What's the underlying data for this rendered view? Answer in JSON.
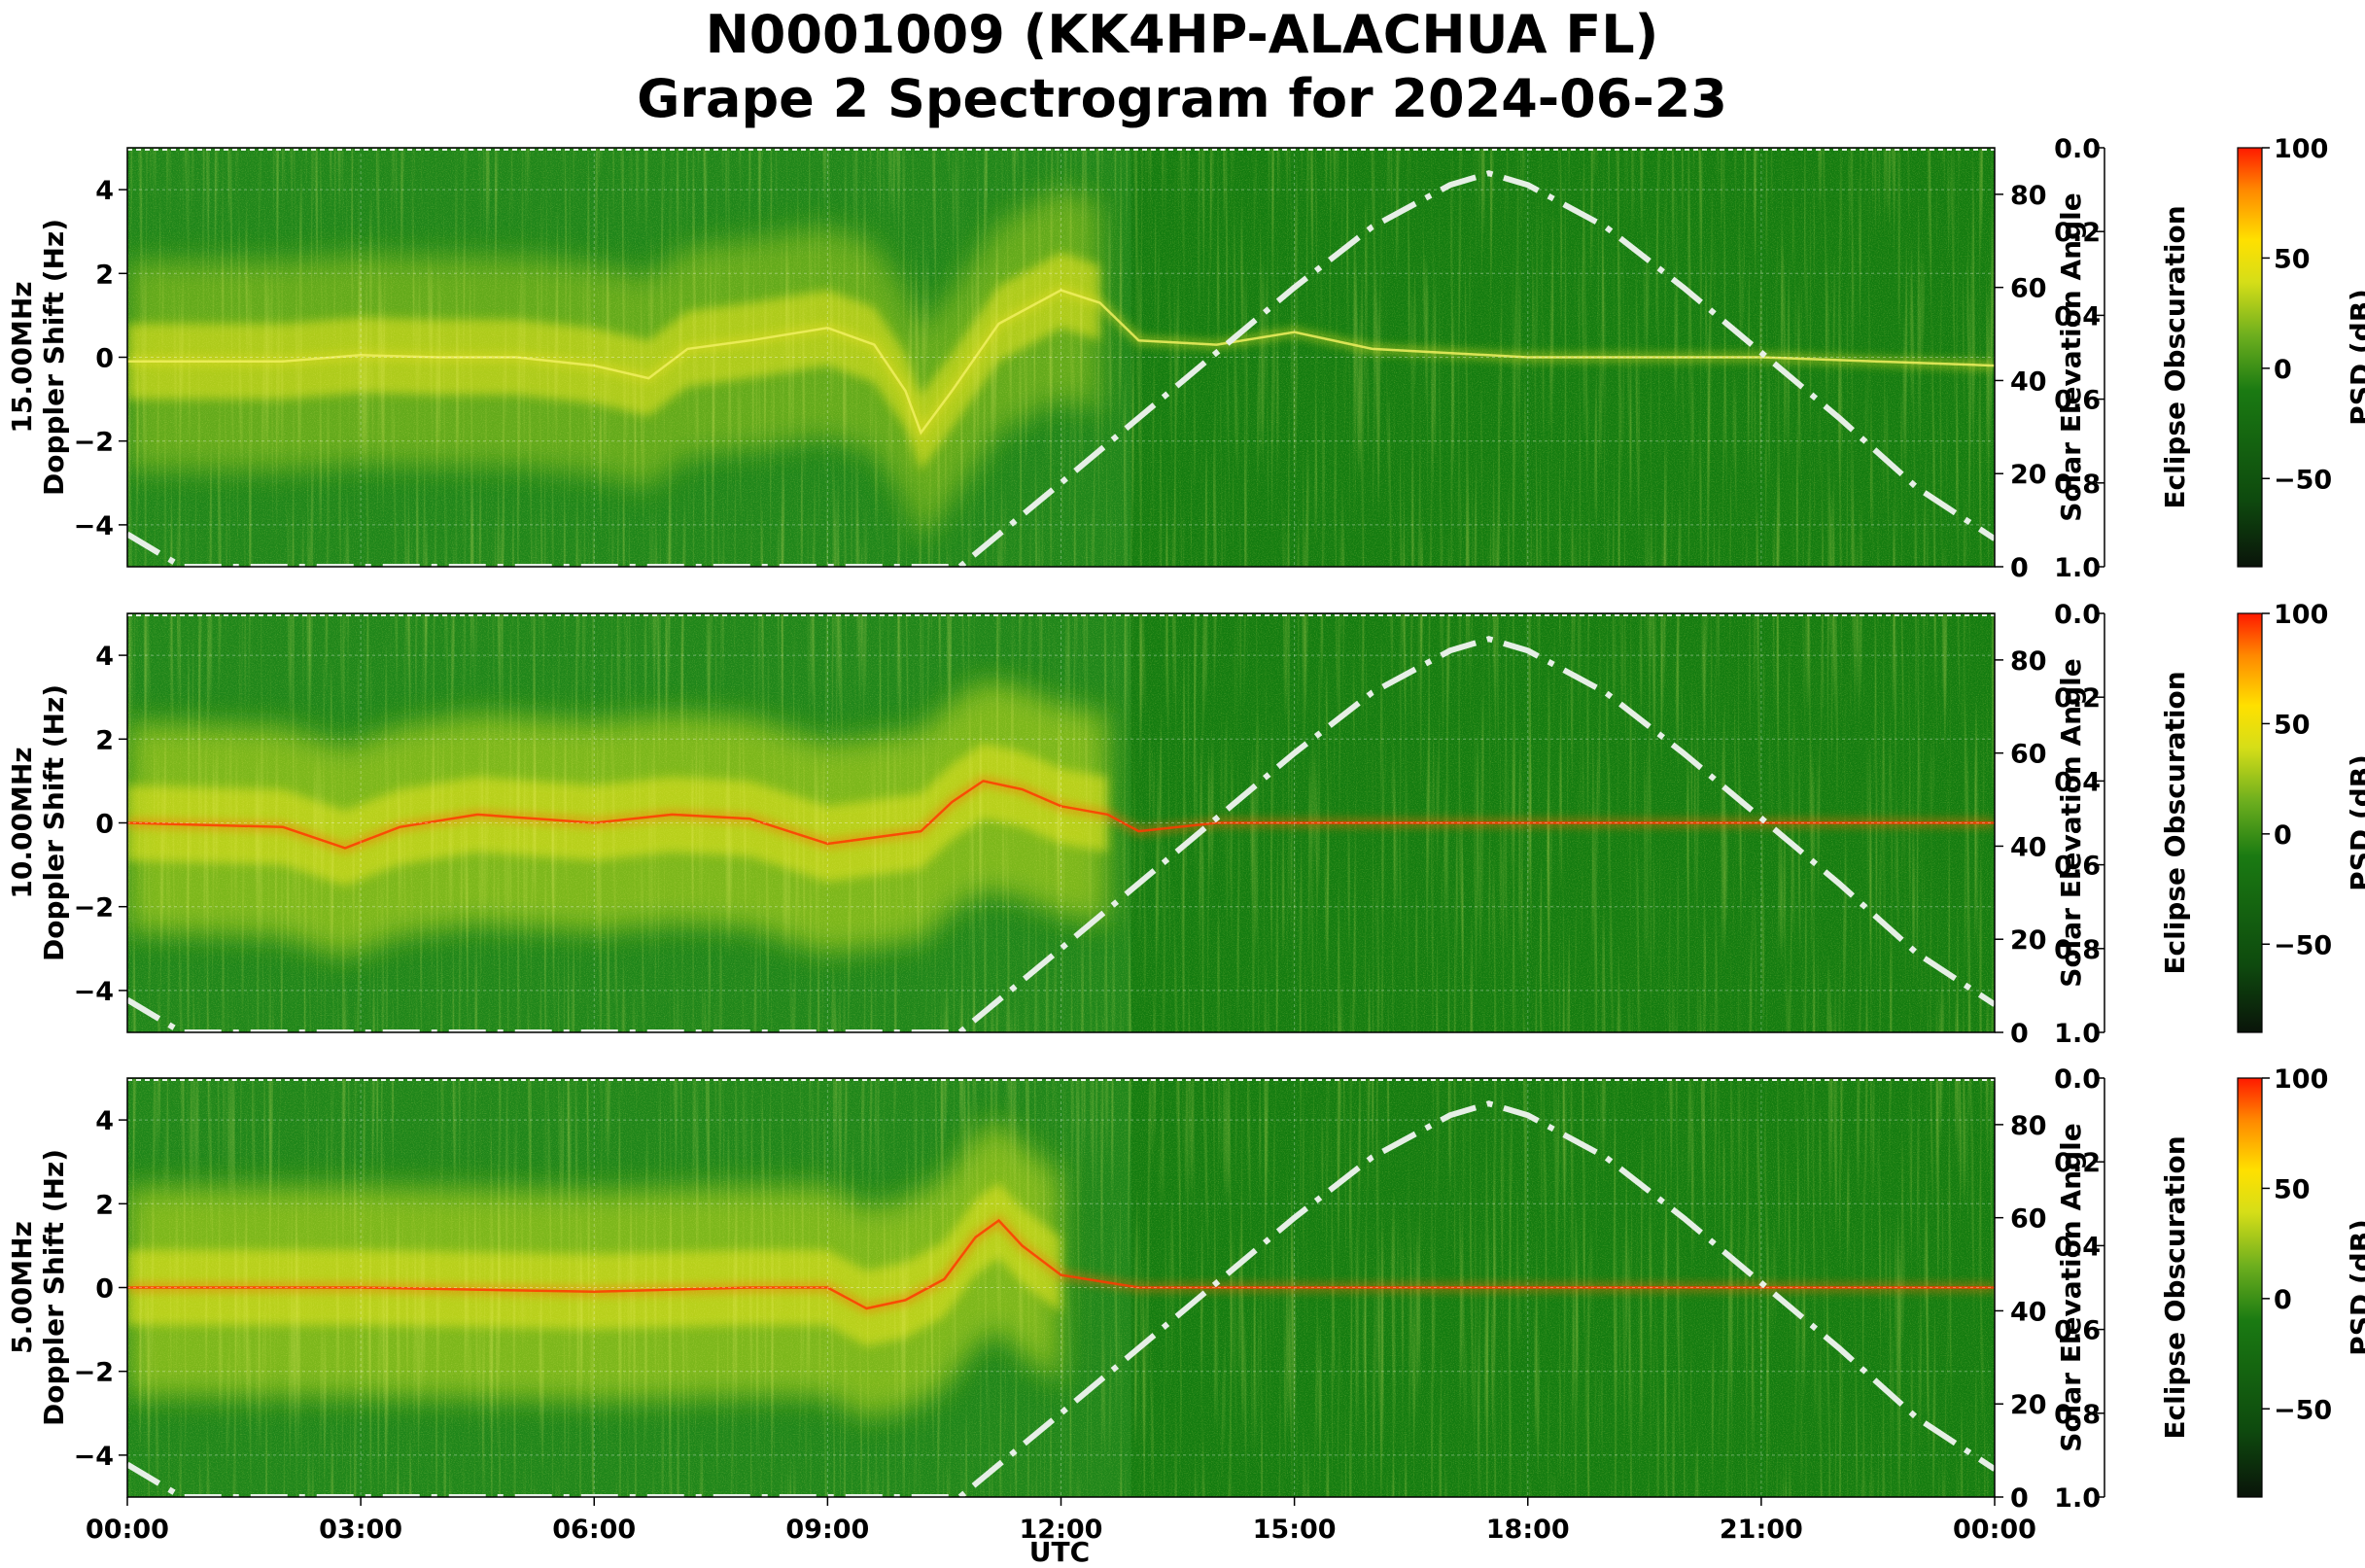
{
  "title_line1": "N0001009 (KK4HP-ALACHUA FL)",
  "title_line2": "Grape 2 Spectrogram for 2024-06-23",
  "chart_data": {
    "type": "heatmap",
    "x_axis": {
      "label": "UTC",
      "ticks": [
        "00:00",
        "03:00",
        "06:00",
        "09:00",
        "12:00",
        "15:00",
        "18:00",
        "21:00",
        "00:00"
      ],
      "range_hours": [
        0,
        24
      ]
    },
    "doppler_axis": {
      "ticks": [
        "4",
        "2",
        "0",
        "−2",
        "−4"
      ],
      "range": [
        -5,
        5
      ]
    },
    "elevation_axis": {
      "label": "Solar Elevation Angle",
      "ticks": [
        "80",
        "60",
        "40",
        "20",
        "0"
      ],
      "range": [
        0,
        90
      ]
    },
    "obscuration_axis": {
      "label": "Eclipse Obscuration",
      "ticks": [
        "0.0",
        "0.2",
        "0.4",
        "0.6",
        "0.8",
        "1.0"
      ],
      "range": [
        0,
        1
      ]
    },
    "colorbar": {
      "label": "PSD (dB)",
      "ticks": [
        "100",
        "50",
        "0",
        "−50"
      ],
      "range": [
        -90,
        100
      ],
      "colors": [
        "#0a140a",
        "#0e4a0e",
        "#1a7a12",
        "#6cae1e",
        "#d6de18",
        "#ffe000",
        "#ff8800",
        "#ff1a00"
      ]
    },
    "panels": [
      {
        "ylabel": "15.00MHz\nDoppler Shift (Hz)",
        "carrier_points": [
          [
            0,
            -0.1
          ],
          [
            2,
            -0.1
          ],
          [
            3,
            0.05
          ],
          [
            4,
            0
          ],
          [
            5,
            0
          ],
          [
            6,
            -0.2
          ],
          [
            6.7,
            -0.5
          ],
          [
            7.2,
            0.2
          ],
          [
            8,
            0.4
          ],
          [
            9,
            0.7
          ],
          [
            9.6,
            0.3
          ],
          [
            10,
            -0.8
          ],
          [
            10.2,
            -1.8
          ],
          [
            10.6,
            -0.8
          ],
          [
            11.2,
            0.8
          ],
          [
            12,
            1.6
          ],
          [
            12.5,
            1.3
          ],
          [
            13,
            0.4
          ],
          [
            14,
            0.3
          ],
          [
            15,
            0.6
          ],
          [
            16,
            0.2
          ],
          [
            18,
            0
          ],
          [
            21,
            0
          ],
          [
            24,
            -0.2
          ]
        ]
      },
      {
        "ylabel": "10.00MHz\nDoppler Shift (Hz)",
        "carrier_points": [
          [
            0,
            0
          ],
          [
            2,
            -0.1
          ],
          [
            2.8,
            -0.6
          ],
          [
            3.5,
            -0.1
          ],
          [
            4.5,
            0.2
          ],
          [
            6,
            0
          ],
          [
            7,
            0.2
          ],
          [
            8,
            0.1
          ],
          [
            9,
            -0.5
          ],
          [
            9.8,
            -0.3
          ],
          [
            10.2,
            -0.2
          ],
          [
            10.6,
            0.5
          ],
          [
            11,
            1
          ],
          [
            11.5,
            0.8
          ],
          [
            12,
            0.4
          ],
          [
            12.6,
            0.2
          ],
          [
            13,
            -0.2
          ],
          [
            14,
            0
          ],
          [
            18,
            0
          ],
          [
            24,
            0
          ]
        ]
      },
      {
        "ylabel": "5.00MHz\nDoppler Shift (Hz)",
        "carrier_points": [
          [
            0,
            0
          ],
          [
            3,
            0
          ],
          [
            6,
            -0.1
          ],
          [
            8,
            0
          ],
          [
            9,
            0
          ],
          [
            9.5,
            -0.5
          ],
          [
            10,
            -0.3
          ],
          [
            10.5,
            0.2
          ],
          [
            10.9,
            1.2
          ],
          [
            11.2,
            1.6
          ],
          [
            11.5,
            1
          ],
          [
            12,
            0.3
          ],
          [
            13,
            0
          ],
          [
            24,
            0
          ]
        ]
      }
    ],
    "solar_elevation_points": [
      [
        0,
        7
      ],
      [
        0.7,
        0
      ],
      [
        10.7,
        0
      ],
      [
        12,
        18
      ],
      [
        13,
        32
      ],
      [
        14,
        46
      ],
      [
        15,
        60
      ],
      [
        16,
        73
      ],
      [
        17,
        82
      ],
      [
        17.5,
        84.5
      ],
      [
        18,
        82
      ],
      [
        19,
        73
      ],
      [
        20,
        60
      ],
      [
        21,
        46
      ],
      [
        22,
        32
      ],
      [
        23,
        17
      ],
      [
        24,
        6
      ]
    ]
  }
}
